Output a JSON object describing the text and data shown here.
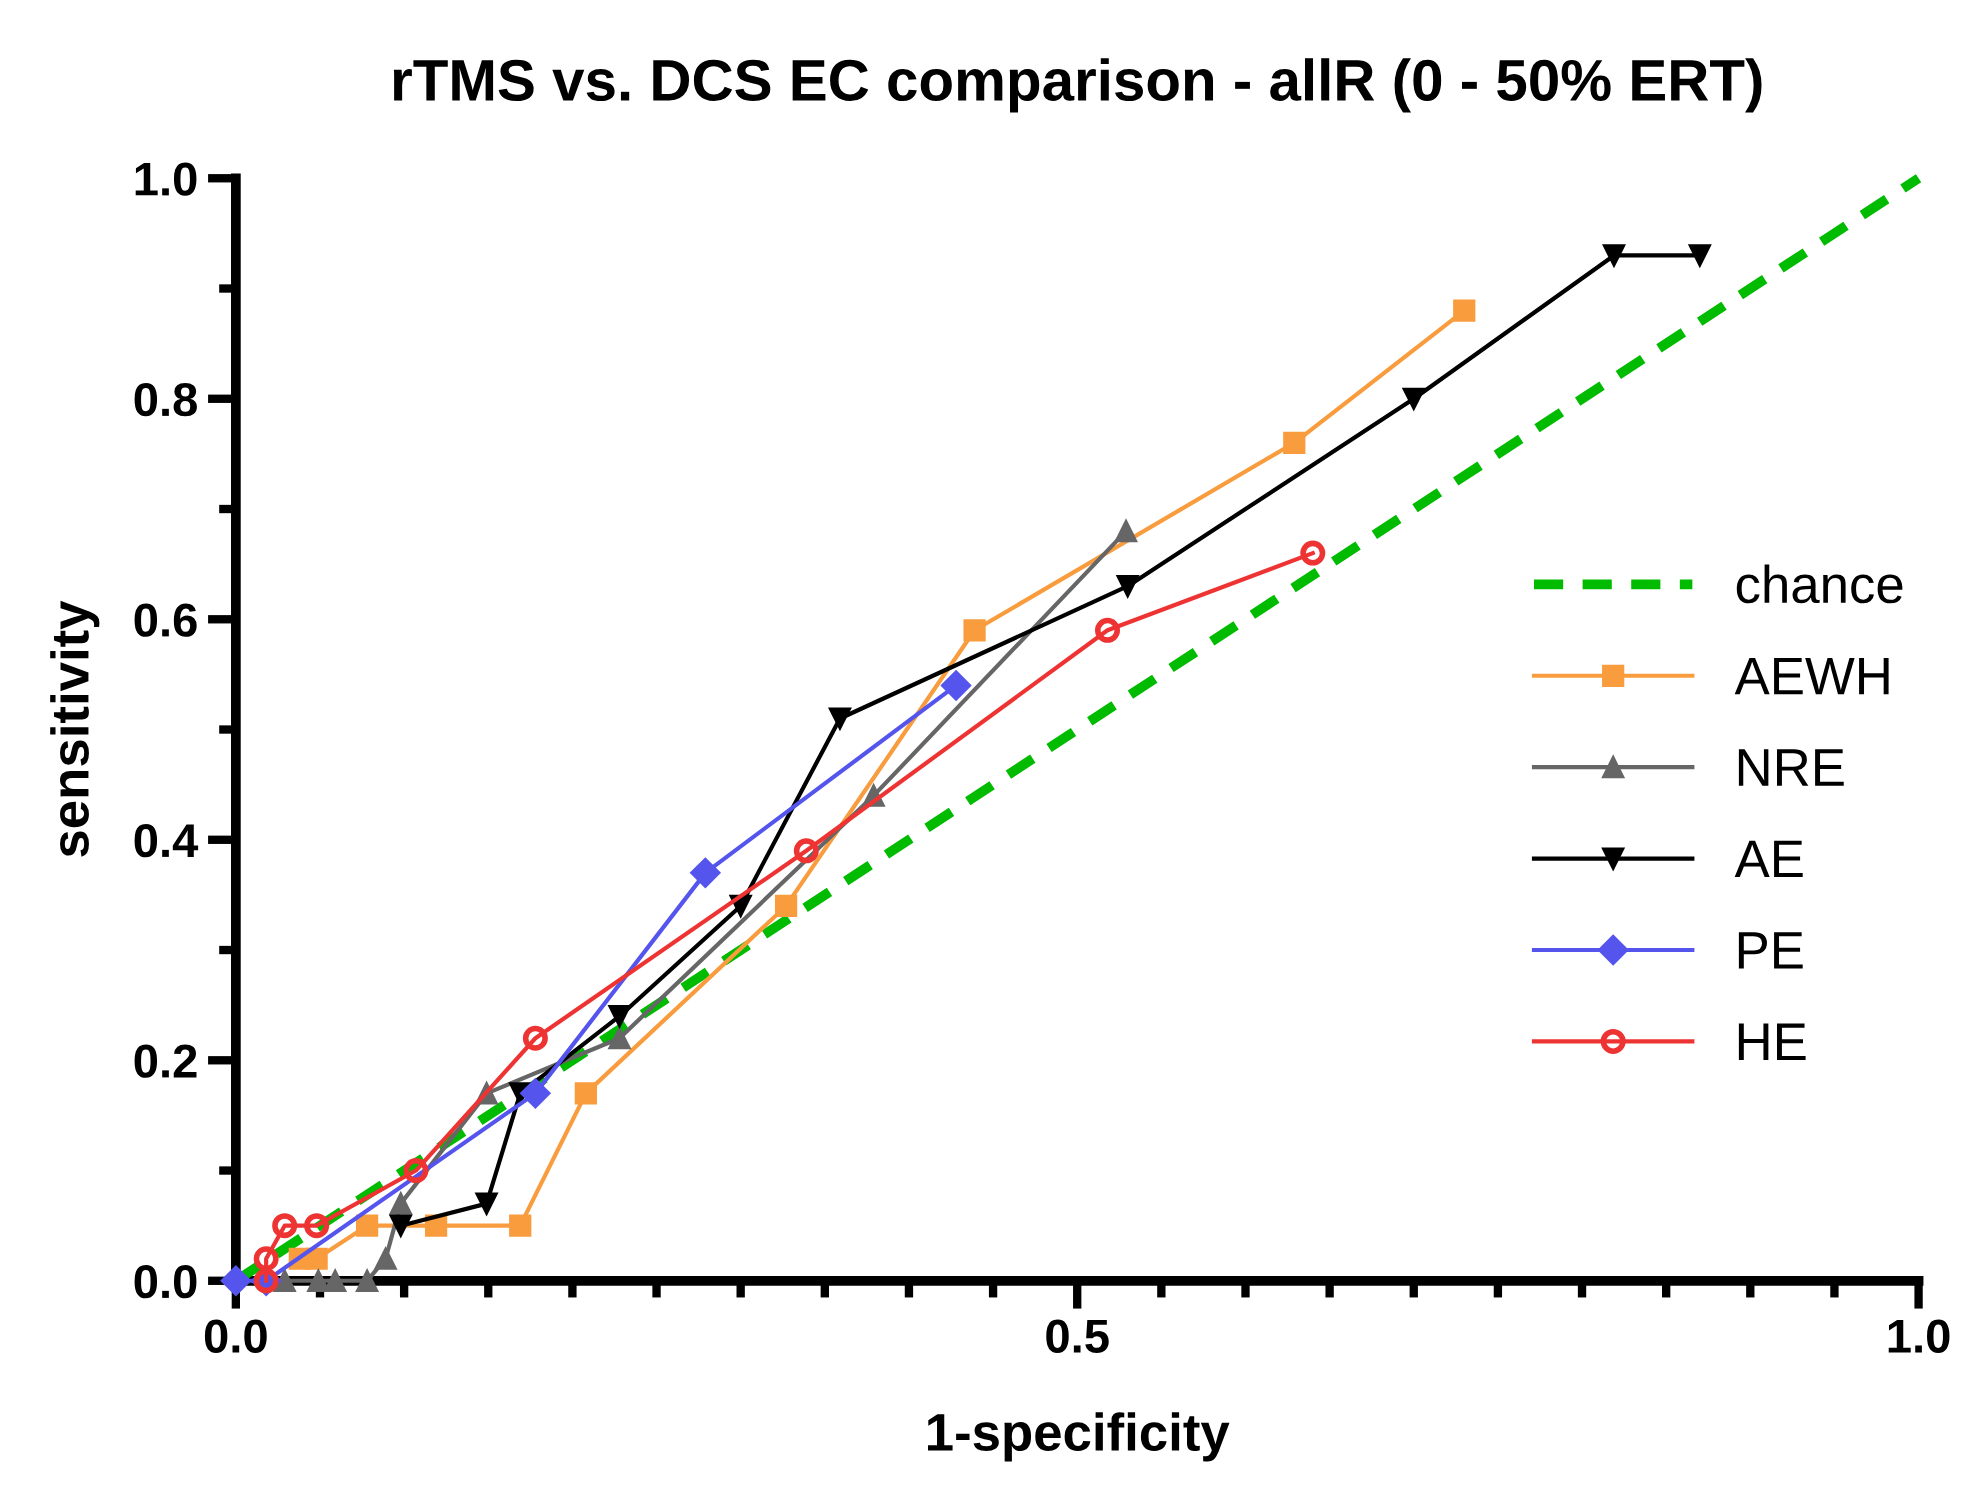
{
  "chart_data": {
    "type": "line",
    "title": "rTMS vs. DCS EC comparison - allR (0 - 50% ERT)",
    "xlabel": "1-specificity",
    "ylabel": "sensitivity",
    "xlim": [
      0,
      1
    ],
    "ylim": [
      0,
      1
    ],
    "xticks": [
      {
        "value": 0,
        "label": "0.0"
      },
      0.5,
      {
        "value": 1,
        "label": "1.0"
      }
    ],
    "yticks": [
      {
        "value": 0,
        "label": "0.0"
      },
      0.2,
      0.4,
      0.6,
      0.8,
      {
        "value": 1,
        "label": "1.0"
      }
    ],
    "grid": false,
    "legend": "right",
    "series": [
      {
        "name": "chance",
        "color": "#00bb00",
        "line_style": "dashed",
        "marker": "none",
        "x": [
          0,
          1
        ],
        "values": [
          0,
          1
        ]
      },
      {
        "name": "AEWH",
        "color": "#f89c3e",
        "marker": "square",
        "x": [
          0.038,
          0.048,
          0.078,
          0.119,
          0.169,
          0.208,
          0.327,
          0.439,
          0.629,
          0.73
        ],
        "values": [
          0.02,
          0.02,
          0.05,
          0.05,
          0.05,
          0.17,
          0.34,
          0.59,
          0.76,
          0.88
        ]
      },
      {
        "name": "NRE",
        "color": "#666666",
        "marker": "triangle",
        "x": [
          0.029,
          0.049,
          0.059,
          0.078,
          0.089,
          0.098,
          0.149,
          0.228,
          0.379,
          0.529
        ],
        "values": [
          0,
          0,
          0,
          0,
          0.02,
          0.07,
          0.17,
          0.22,
          0.44,
          0.68
        ]
      },
      {
        "name": "AE",
        "color": "#000000",
        "marker": "triangle_down",
        "x": [
          0.098,
          0.149,
          0.169,
          0.228,
          0.3,
          0.359,
          0.53,
          0.7,
          0.819,
          0.87
        ],
        "values": [
          0.05,
          0.07,
          0.17,
          0.24,
          0.34,
          0.51,
          0.63,
          0.8,
          0.93,
          0.93
        ]
      },
      {
        "name": "PE",
        "color": "#5555ee",
        "marker": "diamond",
        "x": [
          0,
          0.018,
          0.178,
          0.279,
          0.428
        ],
        "values": [
          0,
          0,
          0.17,
          0.37,
          0.54
        ]
      },
      {
        "name": "HE",
        "color": "#ee3333",
        "marker": "circle",
        "x": [
          0.018,
          0.018,
          0.029,
          0.048,
          0.107,
          0.178,
          0.339,
          0.518,
          0.64
        ],
        "values": [
          0,
          0.02,
          0.05,
          0.05,
          0.1,
          0.22,
          0.39,
          0.59,
          0.66
        ]
      }
    ]
  }
}
